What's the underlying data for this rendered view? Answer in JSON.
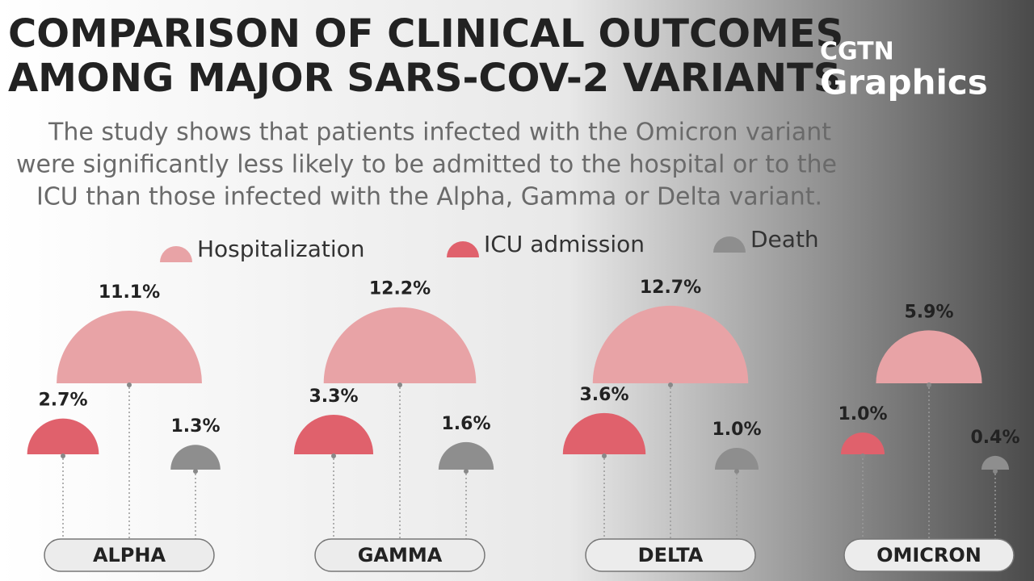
{
  "logo": {
    "line1": "CGTN",
    "line2": "Graphics"
  },
  "chart_data": {
    "type": "semicircle",
    "title": [
      "COMPARISON OF CLINICAL OUTCOMES",
      "AMONG MAJOR SARS-COV-2 VARIANTS"
    ],
    "subtitle": [
      "The study shows that patients infected with the Omicron variant",
      "were significantly less likely to be admitted to the hospital or to the",
      "ICU than those infected with the Alpha, Gamma or Delta variant."
    ],
    "categories": [
      "ALPHA",
      "GAMMA",
      "DELTA",
      "OMICRON"
    ],
    "series": [
      {
        "name": "Hospitalization",
        "color": "#e8a3a6",
        "values": [
          11.1,
          12.2,
          12.7,
          5.9
        ],
        "value_labels": [
          "11.1%",
          "12.2%",
          "12.7%",
          "5.9%"
        ]
      },
      {
        "name": "ICU admission",
        "color": "#e0616c",
        "values": [
          2.7,
          3.3,
          3.6,
          1.0
        ],
        "value_labels": [
          "2.7%",
          "3.3%",
          "3.6%",
          "1.0%"
        ]
      },
      {
        "name": "Death",
        "color": "#8e8e8e",
        "values": [
          1.3,
          1.6,
          1.0,
          0.4
        ],
        "value_labels": [
          "1.3%",
          "1.6%",
          "1.0%",
          "0.4%"
        ]
      }
    ]
  }
}
